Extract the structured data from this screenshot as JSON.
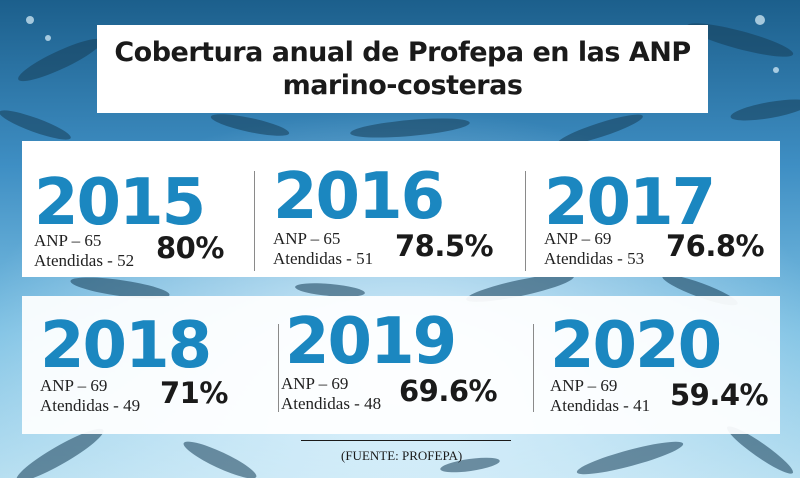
{
  "title": {
    "line1": "Cobertura anual de Profepa en las ANP",
    "line2": "marino-costeras"
  },
  "years": [
    {
      "year": "2015",
      "anp": "ANP – 65",
      "atendidas": "Atendidas - 52",
      "pct": "80%"
    },
    {
      "year": "2016",
      "anp": "ANP – 65",
      "atendidas": "Atendidas - 51",
      "pct": "78.5%"
    },
    {
      "year": "2017",
      "anp": "ANP – 69",
      "atendidas": "Atendidas - 53",
      "pct": "76.8%"
    },
    {
      "year": "2018",
      "anp": "ANP – 69",
      "atendidas": "Atendidas - 49",
      "pct": "71%"
    },
    {
      "year": "2019",
      "anp": "ANP – 69",
      "atendidas": "Atendidas - 48",
      "pct": "69.6%"
    },
    {
      "year": "2020",
      "anp": "ANP – 69",
      "atendidas": "Atendidas - 41",
      "pct": "59.4%"
    }
  ],
  "source": "(FUENTE: PROFEPA)",
  "colors": {
    "year_blue": "#1b87c0",
    "water": "#4a9fcf"
  }
}
